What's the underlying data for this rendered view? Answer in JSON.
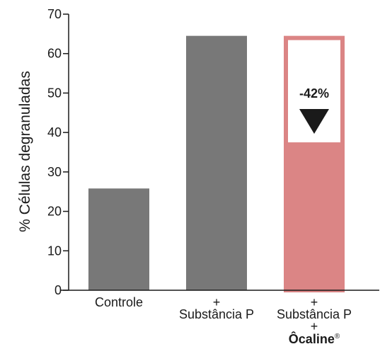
{
  "chart_data": {
    "type": "bar",
    "title": "",
    "xlabel": "",
    "ylabel": "% Células degranuladas",
    "ylim": [
      0,
      70
    ],
    "yticks": [
      0,
      10,
      20,
      30,
      40,
      50,
      60,
      70
    ],
    "grid": false,
    "categories": [
      {
        "lines": [
          "Controle"
        ]
      },
      {
        "lines": [
          "+",
          "Substância P"
        ]
      },
      {
        "lines": [
          "+",
          "Substância P",
          "+"
        ],
        "brand": "Ôcaline",
        "brand_mark": "®"
      }
    ],
    "values": [
      25.8,
      64.5,
      37.5
    ],
    "reference_value": 64.5,
    "colors": {
      "bar_default": "#787878",
      "bar_highlight": "#db8585",
      "axis": "#1a1a1a",
      "arrow": "#1a1a1a"
    },
    "annotation": {
      "text": "-42%",
      "arrow": "down-triangle",
      "category_index": 2
    }
  }
}
